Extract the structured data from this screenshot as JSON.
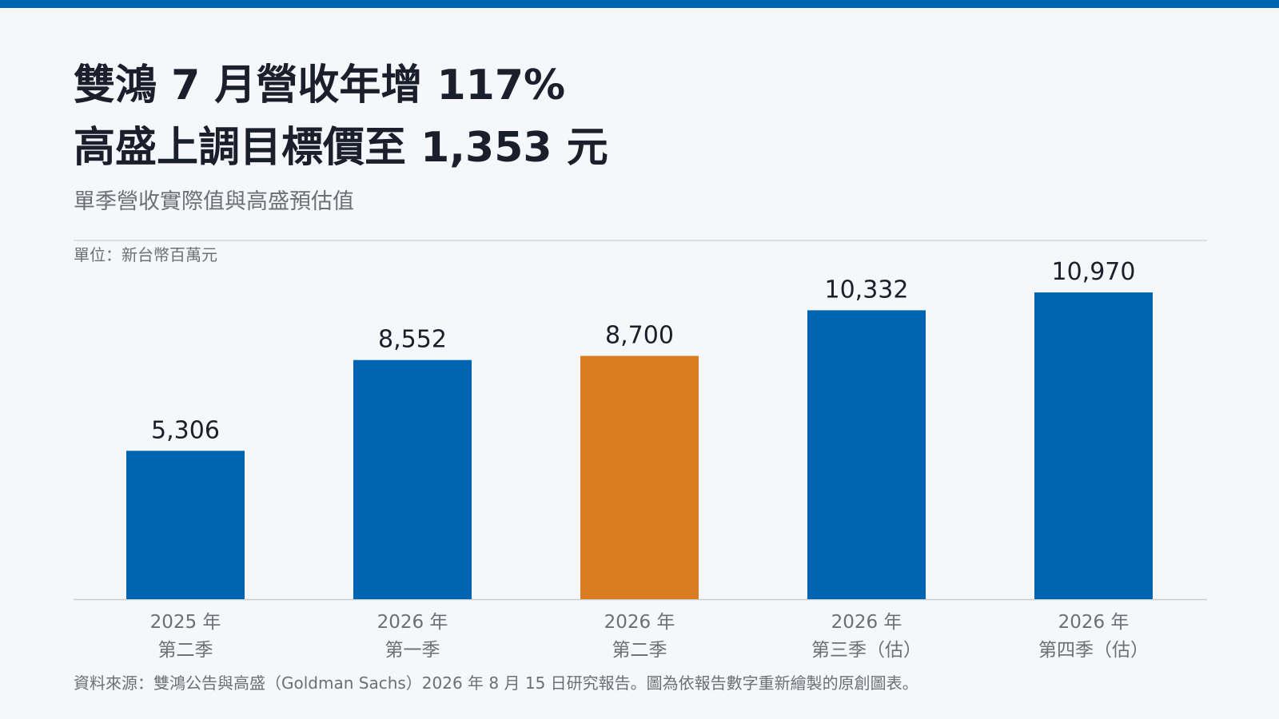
{
  "chart_data": {
    "type": "bar",
    "title": [
      "雙鴻 7 月營收年增 117%",
      "高盛上調目標價至 1,353 元"
    ],
    "subtitle": "單季營收實際值與高盛預估值",
    "unit_label": "單位：新台幣百萬元",
    "source": "資料來源：雙鴻公告與高盛（Goldman Sachs）2026 年 8 月 15 日研究報告。圖為依報告數字重新繪製的原創圖表。",
    "categories": [
      [
        "2025 年",
        "第二季"
      ],
      [
        "2026 年",
        "第一季"
      ],
      [
        "2026 年",
        "第二季"
      ],
      [
        "2026 年",
        "第三季（估）"
      ],
      [
        "2026 年",
        "第四季（估）"
      ]
    ],
    "values": [
      5306,
      8552,
      8700,
      10332,
      10970
    ],
    "value_labels": [
      "5,306",
      "8,552",
      "8,700",
      "10,332",
      "10,970"
    ],
    "colors": [
      "#0065b1",
      "#0065b1",
      "#d97b20",
      "#0065b1",
      "#0065b1"
    ],
    "ylim": [
      0,
      12000
    ]
  }
}
